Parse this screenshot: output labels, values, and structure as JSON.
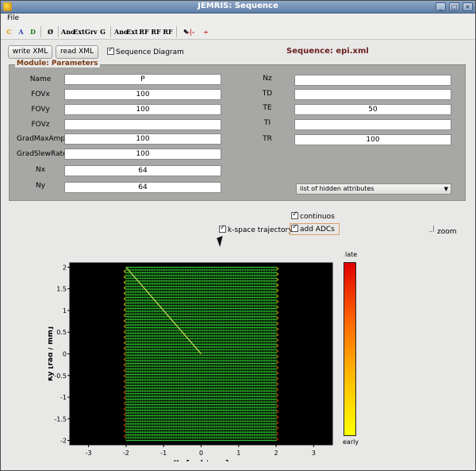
{
  "window": {
    "title": "JEMRIS: Sequence"
  },
  "menu": {
    "file": "File"
  },
  "toolbar": {
    "icons": [
      "C",
      "A",
      "D",
      "Ø",
      "Ano",
      "Ext",
      "Grv",
      "G",
      "Ano",
      "Ext",
      "RF",
      "RF",
      "RF",
      "✎",
      "-|-",
      "÷"
    ]
  },
  "buttons": {
    "write_xml": "write XML",
    "read_xml": "read XML"
  },
  "checkboxes": {
    "sequence_diagram": "Sequence Diagram",
    "continuos": "continuos",
    "kspace": "k-space trajectory",
    "add_adcs": "add ADCs",
    "zoom": "zoom"
  },
  "sequence": {
    "label": "Sequence: epi.xml"
  },
  "module": {
    "title": "Module: Parameters",
    "left": [
      {
        "label": "Name",
        "value": "P"
      },
      {
        "label": "FOVx",
        "value": "100"
      },
      {
        "label": "FOVy",
        "value": "100"
      },
      {
        "label": "FOVz",
        "value": ""
      },
      {
        "label": "GradMaxAmpl",
        "value": "100"
      },
      {
        "label": "GradSlewRate",
        "value": "100"
      },
      {
        "label": "Nx",
        "value": "64"
      },
      {
        "label": "Ny",
        "value": "64"
      }
    ],
    "right": [
      {
        "label": "Nz",
        "value": ""
      },
      {
        "label": "TD",
        "value": ""
      },
      {
        "label": "TE",
        "value": "50"
      },
      {
        "label": "TI",
        "value": ""
      },
      {
        "label": "TR",
        "value": "100"
      }
    ],
    "hidden_attributes": "list of hidden attributes"
  },
  "colorbar": {
    "top": "late",
    "bottom": "early",
    "top_color": "#e00000",
    "bottom_color": "#ffff00"
  },
  "chart_data": {
    "type": "line",
    "xlabel": "Kx [rad / mm]",
    "ylabel": "Ky [rad / mm]",
    "xlim": [
      -3.5,
      3.5
    ],
    "ylim": [
      -2.1,
      2.1
    ],
    "xticks": [
      -3,
      -2,
      -1,
      0,
      1,
      2,
      3
    ],
    "yticks": [
      -2,
      -1.5,
      -1,
      -0.5,
      0,
      0.5,
      1,
      1.5,
      2
    ],
    "trajectory": "EPI raster",
    "kx_range": [
      -2,
      2
    ],
    "ky_range": [
      -2,
      2
    ],
    "lines": 64,
    "samples_per_line": 64,
    "trajectory_color": "#33cc33",
    "background": "#000000"
  }
}
